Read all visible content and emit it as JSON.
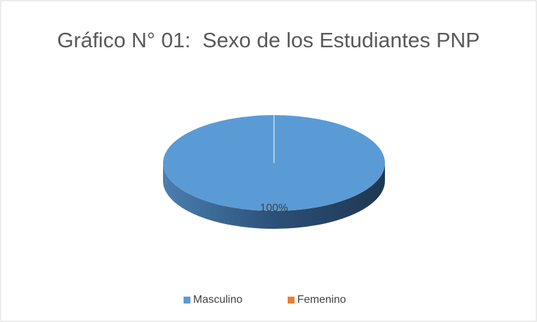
{
  "chart_data": {
    "type": "pie3d",
    "title": "Gráfico N° 01:  Sexo de los Estudiantes PNP",
    "categories": [
      "Masculino",
      "Femenino"
    ],
    "values": [
      100,
      0
    ],
    "value_labels": [
      "100%",
      null
    ],
    "colors": [
      "#5b9bd5",
      "#ed7d31"
    ],
    "legend": "bottom"
  }
}
